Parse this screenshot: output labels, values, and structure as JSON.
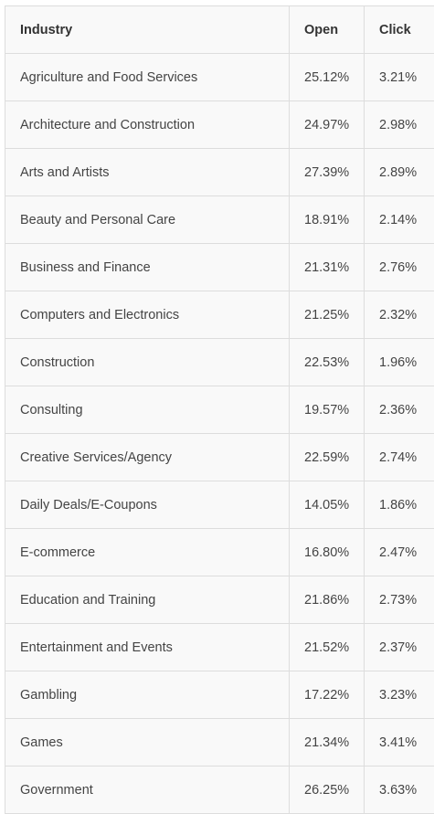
{
  "table": {
    "headers": [
      "Industry",
      "Open",
      "Click"
    ],
    "rows": [
      {
        "industry": "Agriculture and Food Services",
        "open": "25.12%",
        "click": "3.21%"
      },
      {
        "industry": "Architecture and Construction",
        "open": "24.97%",
        "click": "2.98%"
      },
      {
        "industry": "Arts and Artists",
        "open": "27.39%",
        "click": "2.89%"
      },
      {
        "industry": "Beauty and Personal Care",
        "open": "18.91%",
        "click": "2.14%"
      },
      {
        "industry": "Business and Finance",
        "open": "21.31%",
        "click": "2.76%"
      },
      {
        "industry": "Computers and Electronics",
        "open": "21.25%",
        "click": "2.32%"
      },
      {
        "industry": "Construction",
        "open": "22.53%",
        "click": "1.96%"
      },
      {
        "industry": "Consulting",
        "open": "19.57%",
        "click": "2.36%"
      },
      {
        "industry": "Creative Services/Agency",
        "open": "22.59%",
        "click": "2.74%"
      },
      {
        "industry": "Daily Deals/E-Coupons",
        "open": "14.05%",
        "click": "1.86%"
      },
      {
        "industry": "E-commerce",
        "open": "16.80%",
        "click": "2.47%"
      },
      {
        "industry": "Education and Training",
        "open": "21.86%",
        "click": "2.73%"
      },
      {
        "industry": "Entertainment and Events",
        "open": "21.52%",
        "click": "2.37%"
      },
      {
        "industry": "Gambling",
        "open": "17.22%",
        "click": "3.23%"
      },
      {
        "industry": "Games",
        "open": "21.34%",
        "click": "3.41%"
      },
      {
        "industry": "Government",
        "open": "26.25%",
        "click": "3.63%"
      }
    ]
  }
}
